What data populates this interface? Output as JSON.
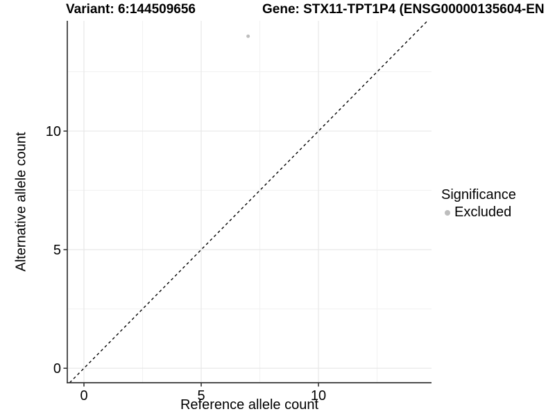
{
  "chart_data": {
    "type": "scatter",
    "title_left": "Variant: 6:144509656",
    "title_right": "Gene: STX11-TPT1P4 (ENSG00000135604-EN",
    "xlabel": "Reference allele count",
    "ylabel": "Alternative allele count",
    "xlim": [
      -0.71,
      14.82
    ],
    "ylim": [
      -0.61,
      14.65
    ],
    "x_major_ticks": [
      0,
      5,
      10
    ],
    "y_major_ticks": [
      0,
      5,
      10
    ],
    "x_minor_ticks": [
      2.5,
      7.5,
      12.5
    ],
    "y_minor_ticks": [
      2.5,
      7.5,
      12.5
    ],
    "grid": true,
    "points": [
      {
        "x": 7,
        "y": 14,
        "series": "Excluded"
      }
    ],
    "identity_line": {
      "equation": "y = x",
      "style": "dashed",
      "color": "#000000"
    },
    "legend": {
      "title": "Significance",
      "position": "right",
      "items": [
        {
          "label": "Excluded",
          "color": "#bdbdbd"
        }
      ]
    },
    "colors": {
      "point": "#bdbdbd",
      "axis_line": "#333333",
      "tick_mark": "#333333",
      "tick_label": "#000000",
      "grid_major": "#e7e7e7",
      "grid_minor": "#f1f1f1",
      "background": "#ffffff"
    }
  }
}
